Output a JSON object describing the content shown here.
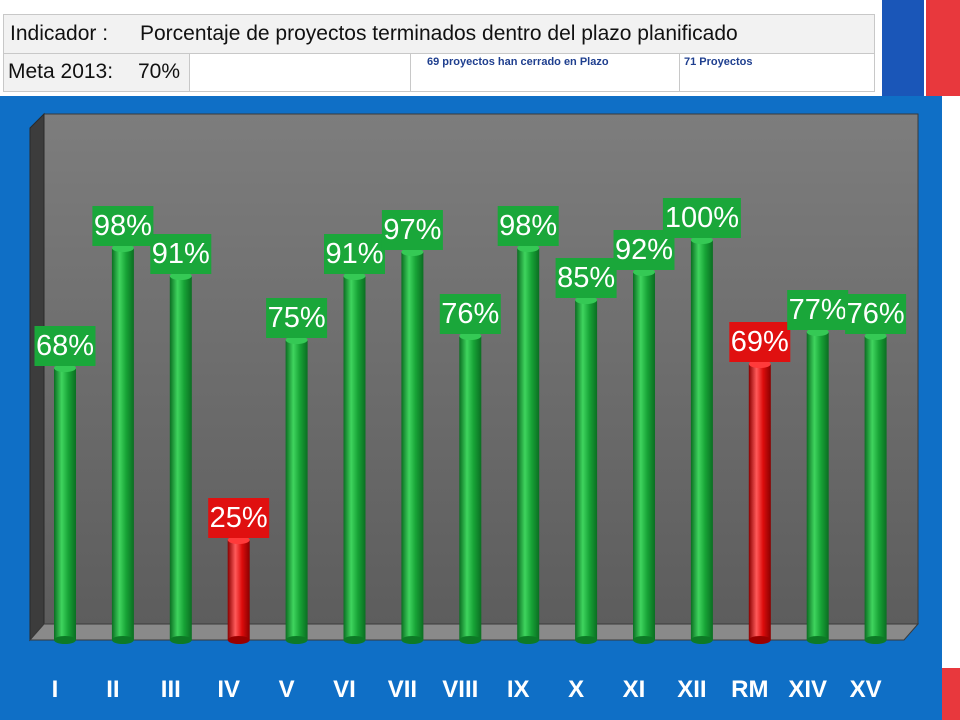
{
  "header": {
    "indicator_label": "Indicador :",
    "indicator_value": "Porcentaje de proyectos terminados dentro del plazo planificado",
    "goal_label": "Meta 2013:",
    "goal_value": "70%",
    "note_closed": "69 proyectos han cerrado en Plazo",
    "note_total": "71 Proyectos"
  },
  "colors": {
    "panel": "#0f6fc6",
    "bar_green": "#1aa73a",
    "bar_red": "#e01010",
    "label_green": "#1aa73a",
    "label_red": "#e01010",
    "flag_blue": "#1a56b8",
    "flag_red": "#e8383d"
  },
  "chart_data": {
    "type": "bar",
    "categories": [
      "I",
      "II",
      "III",
      "IV",
      "V",
      "VI",
      "VII",
      "VIII",
      "IX",
      "X",
      "XI",
      "XII",
      "RM",
      "XIV",
      "XV"
    ],
    "values": [
      68,
      98,
      91,
      25,
      75,
      91,
      97,
      76,
      98,
      85,
      92,
      100,
      69,
      77,
      76
    ],
    "data_labels": [
      "68%",
      "98%",
      "91%",
      "25%",
      "75%",
      "91%",
      "97%",
      "76%",
      "98%",
      "85%",
      "92%",
      "100%",
      "69%",
      "77%",
      "76%"
    ],
    "bar_colors": [
      "green",
      "green",
      "green",
      "red",
      "green",
      "green",
      "green",
      "green",
      "green",
      "green",
      "green",
      "green",
      "red",
      "green",
      "green"
    ],
    "ylim": [
      0,
      100
    ],
    "grid": false,
    "legend": "none"
  }
}
